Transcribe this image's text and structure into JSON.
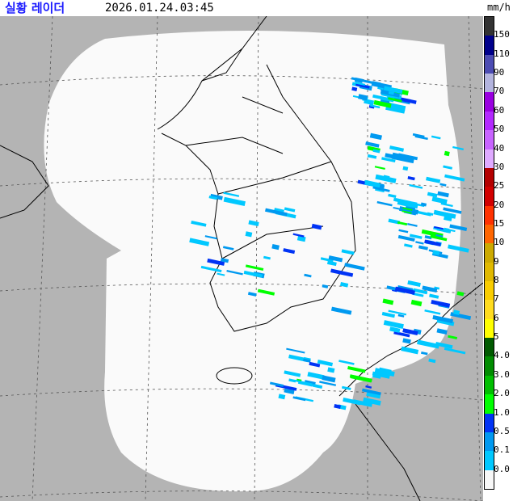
{
  "header": {
    "title": "실황 레이더",
    "timestamp": "2026.01.24.03:45"
  },
  "legend": {
    "unit": "mm/h",
    "colors": [
      "#333333",
      "#00008c",
      "#4c4cb3",
      "#b3b4de",
      "#9900e0",
      "#b329ff",
      "#c864ff",
      "#dfaaff",
      "#b40000",
      "#d20000",
      "#ff3200",
      "#ff6600",
      "#ccaa00",
      "#e0b900",
      "#f9cd00",
      "#ffdc1f",
      "#ffff00",
      "#005a00",
      "#008c00",
      "#00be00",
      "#00ff00",
      "#0033f5",
      "#0099f0",
      "#00c8ff",
      "#f7f7f7"
    ],
    "labels": [
      "150",
      "110",
      "90",
      "70",
      "60",
      "50",
      "40",
      "30",
      "25",
      "20",
      "15",
      "10",
      "9",
      "8",
      "7",
      "6",
      "5",
      "4.0",
      "3.0",
      "2.0",
      "1.0",
      "0.5",
      "0.1",
      "0.0"
    ]
  },
  "map": {
    "background": "#b4b4b4",
    "coverage": "#fafafa",
    "echo_colors": [
      "#00c8ff",
      "#0099f0",
      "#0033f5",
      "#00ff00",
      "#00be00"
    ]
  }
}
